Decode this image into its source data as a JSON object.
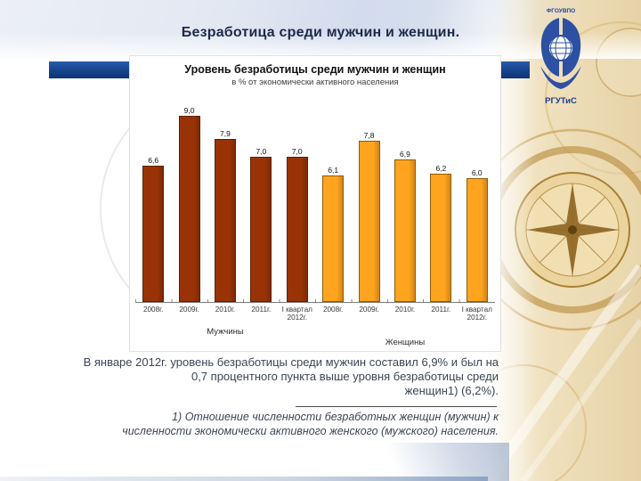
{
  "slide": {
    "title": "Безработица среди мужчин и женщин.",
    "logo": {
      "top_text": "ФГОУВПО",
      "bottom_text": "РГУТиС"
    }
  },
  "chart_data": {
    "type": "bar",
    "title": "Уровень безработицы среди мужчин и женщин",
    "subtitle": "в % от экономически активного населения",
    "categories": [
      "2008г.",
      "2009г.",
      "2010г.",
      "2011г.",
      "I квартал 2012г."
    ],
    "series": [
      {
        "name": "Мужчины",
        "color": "#993306",
        "border": "#5e2002",
        "values": [
          6.6,
          9.0,
          7.9,
          7.0,
          7.0
        ],
        "labels": [
          "6,6",
          "9,0",
          "7,9",
          "7,0",
          "7,0"
        ]
      },
      {
        "name": "Женщины",
        "color": "#ffa41e",
        "border": "#8f5c06",
        "values": [
          6.1,
          7.8,
          6.9,
          6.2,
          6.0
        ],
        "labels": [
          "6,1",
          "7,8",
          "6,9",
          "6,2",
          "6,0"
        ]
      }
    ],
    "ylim": [
      0,
      9.5
    ],
    "grid": false,
    "legend_position": "below-axis-group-labels",
    "value_labels": true
  },
  "body": {
    "lines": [
      "В январе 2012г. уровень безработицы среди мужчин составил 6,9% и был на",
      "0,7 процентного пункта выше уровня безработицы среди",
      "женщин1) (6,2%)."
    ],
    "footnote_lines": [
      "1) Отношение численности безработных женщин (мужчин) к",
      "численности экономически активного женского (мужского) населения."
    ]
  }
}
